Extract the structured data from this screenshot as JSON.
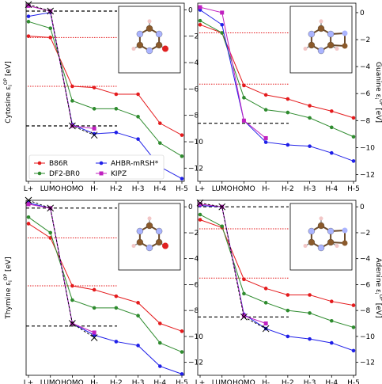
{
  "colors": {
    "B86R": "#e41a1c",
    "DF2-BR0": "#2e8b2e",
    "AHBR-mRSH*": "#1f1fe8",
    "KIPZ": "#c020c0"
  },
  "legend": {
    "placement": "lower-left of top-left panel",
    "entries": [
      "B86R",
      "AHBR-mRSH*",
      "DF2-BR0",
      "KIPZ"
    ]
  },
  "chart_data": [
    {
      "type": "line",
      "molecule": "Cytosine",
      "ylabel": "Cytosine ε_i^OP [eV]",
      "ylim": [
        -13,
        0.5
      ],
      "yticks": [
        0,
        -2,
        -4,
        -6,
        -8,
        -10,
        -12
      ],
      "y_axis_side": "right",
      "categories": [
        "L+",
        "LUMO",
        "HOMO",
        "H-",
        "H-2",
        "H-3",
        "H-4",
        "H-5"
      ],
      "series": [
        {
          "name": "B86R",
          "values": [
            -2.0,
            -2.1,
            -5.8,
            -5.9,
            -6.4,
            -6.4,
            -8.6,
            -9.5
          ]
        },
        {
          "name": "DF2-BR0",
          "values": [
            -0.9,
            -1.4,
            -6.9,
            -7.5,
            -7.5,
            -8.1,
            -10.1,
            -11.1
          ]
        },
        {
          "name": "AHBR-mRSH*",
          "values": [
            -0.5,
            -0.2,
            -8.7,
            -9.4,
            -9.3,
            -9.8,
            -11.9,
            -12.8
          ]
        },
        {
          "name": "KIPZ",
          "values": [
            0.3,
            -0.1,
            -8.8,
            -9.0,
            null,
            null,
            null,
            null
          ]
        }
      ],
      "reference": {
        "values": [
          0.4,
          -0.1,
          -8.8,
          -9.5,
          null,
          null,
          null,
          null
        ]
      },
      "dashed_levels": [
        -0.1,
        -8.8
      ],
      "dotted_levels": [
        -2.1,
        -5.8
      ]
    },
    {
      "type": "line",
      "molecule": "Guanine",
      "ylabel": "Guanine ε_i^OP [eV]",
      "ylim": [
        -12.5,
        0.7
      ],
      "yticks": [
        0,
        -2,
        -4,
        -6,
        -8,
        -10,
        -12
      ],
      "y_axis_side": "right",
      "categories": [
        "L+",
        "LUMO",
        "HOMO",
        "H-",
        "H-2",
        "H-3",
        "H-4",
        "H-5"
      ],
      "series": [
        {
          "name": "B86R",
          "values": [
            -0.9,
            -1.5,
            -5.4,
            -6.1,
            -6.4,
            -6.9,
            -7.3,
            -7.8
          ]
        },
        {
          "name": "DF2-BR0",
          "values": [
            -0.6,
            -1.5,
            -6.3,
            -7.2,
            -7.4,
            -7.8,
            -8.5,
            -9.2
          ]
        },
        {
          "name": "AHBR-mRSH*",
          "values": [
            0.2,
            -0.9,
            -8.0,
            -9.6,
            -9.8,
            -9.9,
            -10.4,
            -11.0
          ]
        },
        {
          "name": "KIPZ",
          "values": [
            0.4,
            0.0,
            -8.0,
            -9.3,
            null,
            null,
            null,
            null
          ]
        }
      ],
      "dashed_levels": [
        -8.2
      ],
      "dotted_levels": [
        -1.5,
        -5.3
      ]
    },
    {
      "type": "line",
      "molecule": "Thymine",
      "ylabel": "Thymine ε_i^OP [eV]",
      "ylim": [
        -13,
        0.5
      ],
      "yticks": [
        0,
        -2,
        -4,
        -6,
        -8,
        -10,
        -12
      ],
      "y_axis_side": "right",
      "categories": [
        "L+",
        "LUMO",
        "HOMO",
        "H-",
        "H-2",
        "H-3",
        "H-4",
        "H-5"
      ],
      "series": [
        {
          "name": "B86R",
          "values": [
            -1.3,
            -2.4,
            -6.1,
            -6.4,
            -6.9,
            -7.4,
            -9.0,
            -9.6
          ]
        },
        {
          "name": "DF2-BR0",
          "values": [
            -0.8,
            -2.0,
            -7.2,
            -7.8,
            -7.8,
            -8.4,
            -10.5,
            -11.2
          ]
        },
        {
          "name": "AHBR-mRSH*",
          "values": [
            0.3,
            -0.1,
            -9.0,
            -9.9,
            -10.4,
            -10.7,
            -12.3,
            -12.9
          ]
        },
        {
          "name": "KIPZ",
          "values": [
            0.2,
            -0.1,
            -9.0,
            -9.7,
            null,
            null,
            null,
            null
          ]
        }
      ],
      "reference": {
        "values": [
          0.5,
          -0.1,
          -9.0,
          -10.1,
          null,
          null,
          null,
          null
        ]
      },
      "dashed_levels": [
        -0.1,
        -9.2
      ],
      "dotted_levels": [
        -2.4,
        -6.1
      ]
    },
    {
      "type": "line",
      "molecule": "Adenine",
      "ylabel": "Adenine ε_i^OP [eV]",
      "ylim": [
        -13,
        0.5
      ],
      "yticks": [
        0,
        -2,
        -4,
        -6,
        -8,
        -10,
        -12
      ],
      "y_axis_side": "right",
      "categories": [
        "L+",
        "LUMO",
        "HOMO",
        "H-",
        "H-2",
        "H-3",
        "H-4",
        "H-5"
      ],
      "series": [
        {
          "name": "B86R",
          "values": [
            -1.0,
            -1.6,
            -5.6,
            -6.3,
            -6.8,
            -6.8,
            -7.3,
            -7.6
          ]
        },
        {
          "name": "DF2-BR0",
          "values": [
            -0.6,
            -1.5,
            -6.7,
            -7.4,
            -8.0,
            -8.2,
            -8.8,
            -9.3
          ]
        },
        {
          "name": "AHBR-mRSH*",
          "values": [
            0.1,
            0.0,
            -8.3,
            -9.4,
            -10.0,
            -10.2,
            -10.5,
            -11.1
          ]
        },
        {
          "name": "KIPZ",
          "values": [
            0.2,
            0.0,
            -8.4,
            -9.0,
            null,
            null,
            null,
            null
          ]
        }
      ],
      "reference": {
        "values": [
          0.3,
          0.0,
          -8.5,
          -9.4,
          null,
          null,
          null,
          null
        ]
      },
      "dashed_levels": [
        0.0,
        -8.5
      ],
      "dotted_levels": [
        -1.7,
        -5.5
      ]
    }
  ]
}
